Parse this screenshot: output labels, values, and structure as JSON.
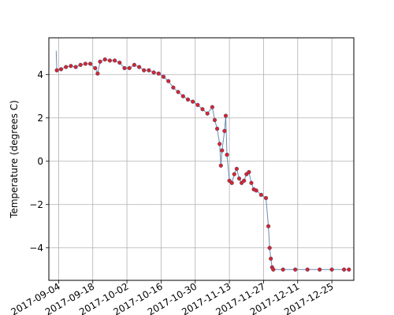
{
  "chart_data": {
    "type": "scatter",
    "title": "",
    "xlabel": "",
    "ylabel": "Temperature (degrees C)",
    "grid": true,
    "xlim": [
      "2017-08-31",
      "2018-01-03"
    ],
    "ylim": [
      -5.5,
      5.7
    ],
    "x_ticks": [
      "2017-09-04",
      "2017-09-18",
      "2017-10-02",
      "2017-10-16",
      "2017-10-30",
      "2017-11-13",
      "2017-11-27",
      "2017-12-11",
      "2017-12-25"
    ],
    "y_ticks": [
      -4,
      -2,
      0,
      2,
      4
    ],
    "series": [
      {
        "marker": "dot",
        "color": "#d62728",
        "line_color": "#6a8caf",
        "points": [
          {
            "x": "2017-09-03",
            "y": 5.1
          },
          {
            "x": "2017-09-03 06:00",
            "y": 4.2
          },
          {
            "x": "2017-09-05",
            "y": 4.25
          },
          {
            "x": "2017-09-07",
            "y": 4.35
          },
          {
            "x": "2017-09-09",
            "y": 4.4
          },
          {
            "x": "2017-09-11",
            "y": 4.35
          },
          {
            "x": "2017-09-13",
            "y": 4.45
          },
          {
            "x": "2017-09-15",
            "y": 4.5
          },
          {
            "x": "2017-09-17",
            "y": 4.5
          },
          {
            "x": "2017-09-19",
            "y": 4.3
          },
          {
            "x": "2017-09-20",
            "y": 4.05
          },
          {
            "x": "2017-09-21",
            "y": 4.6
          },
          {
            "x": "2017-09-23",
            "y": 4.7
          },
          {
            "x": "2017-09-25",
            "y": 4.65
          },
          {
            "x": "2017-09-27",
            "y": 4.65
          },
          {
            "x": "2017-09-29",
            "y": 4.55
          },
          {
            "x": "2017-10-01",
            "y": 4.3
          },
          {
            "x": "2017-10-03",
            "y": 4.3
          },
          {
            "x": "2017-10-05",
            "y": 4.45
          },
          {
            "x": "2017-10-07",
            "y": 4.35
          },
          {
            "x": "2017-10-09",
            "y": 4.2
          },
          {
            "x": "2017-10-11",
            "y": 4.2
          },
          {
            "x": "2017-10-13",
            "y": 4.1
          },
          {
            "x": "2017-10-15",
            "y": 4.05
          },
          {
            "x": "2017-10-17",
            "y": 3.9
          },
          {
            "x": "2017-10-19",
            "y": 3.7
          },
          {
            "x": "2017-10-21",
            "y": 3.4
          },
          {
            "x": "2017-10-23",
            "y": 3.2
          },
          {
            "x": "2017-10-25",
            "y": 3.0
          },
          {
            "x": "2017-10-27",
            "y": 2.85
          },
          {
            "x": "2017-10-29",
            "y": 2.75
          },
          {
            "x": "2017-10-31",
            "y": 2.6
          },
          {
            "x": "2017-11-02",
            "y": 2.4
          },
          {
            "x": "2017-11-04",
            "y": 2.2
          },
          {
            "x": "2017-11-06",
            "y": 2.5
          },
          {
            "x": "2017-11-07",
            "y": 1.9
          },
          {
            "x": "2017-11-08",
            "y": 1.5
          },
          {
            "x": "2017-11-09",
            "y": 0.8
          },
          {
            "x": "2017-11-09 12:00",
            "y": -0.2
          },
          {
            "x": "2017-11-10",
            "y": 0.5
          },
          {
            "x": "2017-11-11",
            "y": 1.4
          },
          {
            "x": "2017-11-11 12:00",
            "y": 2.1
          },
          {
            "x": "2017-11-12",
            "y": 0.3
          },
          {
            "x": "2017-11-13",
            "y": -0.9
          },
          {
            "x": "2017-11-14",
            "y": -1.0
          },
          {
            "x": "2017-11-15",
            "y": -0.6
          },
          {
            "x": "2017-11-16",
            "y": -0.35
          },
          {
            "x": "2017-11-17",
            "y": -0.8
          },
          {
            "x": "2017-11-18",
            "y": -1.0
          },
          {
            "x": "2017-11-19",
            "y": -0.9
          },
          {
            "x": "2017-11-20",
            "y": -0.6
          },
          {
            "x": "2017-11-21",
            "y": -0.5
          },
          {
            "x": "2017-11-22",
            "y": -1.0
          },
          {
            "x": "2017-11-23",
            "y": -1.3
          },
          {
            "x": "2017-11-24",
            "y": -1.35
          },
          {
            "x": "2017-11-26",
            "y": -1.55
          },
          {
            "x": "2017-11-28",
            "y": -1.7
          },
          {
            "x": "2017-11-29",
            "y": -3.0
          },
          {
            "x": "2017-11-29 12:00",
            "y": -4.0
          },
          {
            "x": "2017-11-30",
            "y": -4.5
          },
          {
            "x": "2017-11-30 12:00",
            "y": -4.9
          },
          {
            "x": "2017-12-01",
            "y": -5.0
          },
          {
            "x": "2017-12-05",
            "y": -5.0
          },
          {
            "x": "2017-12-10",
            "y": -5.0
          },
          {
            "x": "2017-12-15",
            "y": -5.0
          },
          {
            "x": "2017-12-20",
            "y": -5.0
          },
          {
            "x": "2017-12-25",
            "y": -5.0
          },
          {
            "x": "2017-12-30",
            "y": -5.0
          },
          {
            "x": "2018-01-01",
            "y": -5.0
          }
        ]
      }
    ]
  }
}
